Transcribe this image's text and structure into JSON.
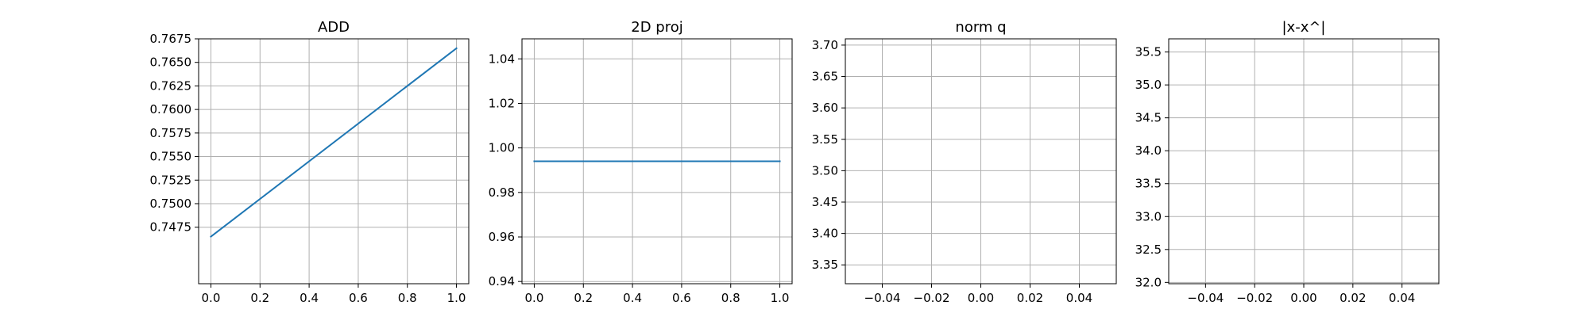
{
  "chart_data": [
    {
      "type": "line",
      "title": "ADD",
      "xlim": [
        -0.05,
        1.05
      ],
      "ylim": [
        0.7415,
        0.7675
      ],
      "xticks": [
        0.0,
        0.2,
        0.4,
        0.6,
        0.8,
        1.0
      ],
      "xtick_labels": [
        "0.0",
        "0.2",
        "0.4",
        "0.6",
        "0.8",
        "1.0"
      ],
      "yticks": [
        0.7475,
        0.75,
        0.7525,
        0.755,
        0.7575,
        0.76,
        0.7625,
        0.765,
        0.7675
      ],
      "ytick_labels": [
        "0.7475",
        "0.7500",
        "0.7525",
        "0.7550",
        "0.7575",
        "0.7600",
        "0.7625",
        "0.7650",
        "0.7675"
      ],
      "grid": true,
      "series": [
        {
          "x": [
            0.0,
            1.0
          ],
          "y": [
            0.7465,
            0.7665
          ],
          "color": "#1f77b4"
        }
      ]
    },
    {
      "type": "line",
      "title": "2D proj",
      "xlim": [
        -0.05,
        1.05
      ],
      "ylim": [
        0.939,
        1.049
      ],
      "xticks": [
        0.0,
        0.2,
        0.4,
        0.6,
        0.8,
        1.0
      ],
      "xtick_labels": [
        "0.0",
        "0.2",
        "0.4",
        "0.6",
        "0.8",
        "1.0"
      ],
      "yticks": [
        0.94,
        0.96,
        0.98,
        1.0,
        1.02,
        1.04
      ],
      "ytick_labels": [
        "0.94",
        "0.96",
        "0.98",
        "1.00",
        "1.02",
        "1.04"
      ],
      "grid": true,
      "series": [
        {
          "x": [
            0.0,
            1.0
          ],
          "y": [
            0.994,
            0.994
          ],
          "color": "#1f77b4"
        }
      ]
    },
    {
      "type": "line",
      "title": "norm q",
      "xlim": [
        -0.055,
        0.055
      ],
      "ylim": [
        3.32,
        3.71
      ],
      "xticks": [
        -0.04,
        -0.02,
        0.0,
        0.02,
        0.04
      ],
      "xtick_labels": [
        "−0.04",
        "−0.02",
        "0.00",
        "0.02",
        "0.04"
      ],
      "yticks": [
        3.35,
        3.4,
        3.45,
        3.5,
        3.55,
        3.6,
        3.65,
        3.7
      ],
      "ytick_labels": [
        "3.35",
        "3.40",
        "3.45",
        "3.50",
        "3.55",
        "3.60",
        "3.65",
        "3.70"
      ],
      "grid": true,
      "series": []
    },
    {
      "type": "line",
      "title": "|x-x^|",
      "xlim": [
        -0.055,
        0.055
      ],
      "ylim": [
        31.98,
        35.7
      ],
      "xticks": [
        -0.04,
        -0.02,
        0.0,
        0.02,
        0.04
      ],
      "xtick_labels": [
        "−0.04",
        "−0.02",
        "0.00",
        "0.02",
        "0.04"
      ],
      "yticks": [
        32.0,
        32.5,
        33.0,
        33.5,
        34.0,
        34.5,
        35.0,
        35.5
      ],
      "ytick_labels": [
        "32.0",
        "32.5",
        "33.0",
        "33.5",
        "34.0",
        "34.5",
        "35.0",
        "35.5"
      ],
      "grid": true,
      "series": []
    }
  ]
}
